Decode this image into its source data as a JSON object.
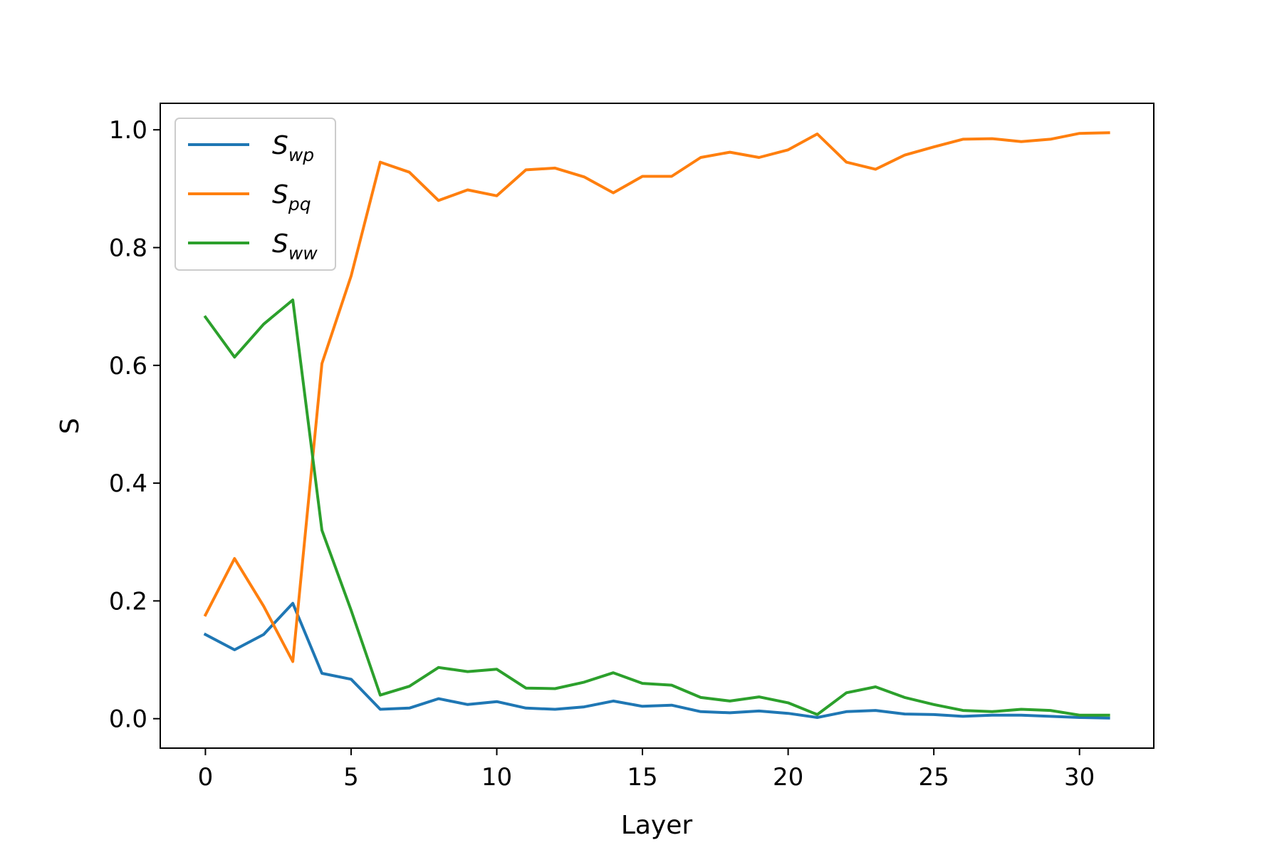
{
  "chart_data": {
    "type": "line",
    "title": "",
    "xlabel": "Layer",
    "ylabel": "S",
    "xlim": [
      -1.55,
      32.55
    ],
    "ylim": [
      -0.05,
      1.045
    ],
    "xticks": [
      0,
      5,
      10,
      15,
      20,
      25,
      30
    ],
    "xtick_labels": [
      "0",
      "5",
      "10",
      "15",
      "20",
      "25",
      "30"
    ],
    "yticks": [
      0.0,
      0.2,
      0.4,
      0.6,
      0.8,
      1.0
    ],
    "ytick_labels": [
      "0.0",
      "0.2",
      "0.4",
      "0.6",
      "0.8",
      "1.0"
    ],
    "grid": false,
    "legend_position": "upper-left",
    "x": [
      0,
      1,
      2,
      3,
      4,
      5,
      6,
      7,
      8,
      9,
      10,
      11,
      12,
      13,
      14,
      15,
      16,
      17,
      18,
      19,
      20,
      21,
      22,
      23,
      24,
      25,
      26,
      27,
      28,
      29,
      30,
      31
    ],
    "series": [
      {
        "name": "S_wp",
        "legend_main": "S",
        "legend_sub": "wp",
        "color": "#1f77b4",
        "values": [
          0.143,
          0.117,
          0.143,
          0.196,
          0.077,
          0.067,
          0.016,
          0.018,
          0.034,
          0.024,
          0.029,
          0.018,
          0.016,
          0.02,
          0.03,
          0.021,
          0.023,
          0.012,
          0.01,
          0.013,
          0.009,
          0.002,
          0.012,
          0.014,
          0.008,
          0.007,
          0.004,
          0.006,
          0.006,
          0.004,
          0.002,
          0.001
        ]
      },
      {
        "name": "S_pq",
        "legend_main": "S",
        "legend_sub": "pq",
        "color": "#ff7f0e",
        "values": [
          0.176,
          0.272,
          0.191,
          0.097,
          0.603,
          0.752,
          0.945,
          0.928,
          0.88,
          0.898,
          0.888,
          0.932,
          0.935,
          0.92,
          0.893,
          0.921,
          0.921,
          0.953,
          0.962,
          0.953,
          0.966,
          0.993,
          0.945,
          0.933,
          0.957,
          0.971,
          0.984,
          0.985,
          0.98,
          0.984,
          0.994,
          0.995
        ]
      },
      {
        "name": "S_ww",
        "legend_main": "S",
        "legend_sub": "ww",
        "color": "#2ca02c",
        "values": [
          0.682,
          0.614,
          0.67,
          0.711,
          0.32,
          0.184,
          0.04,
          0.055,
          0.087,
          0.08,
          0.084,
          0.052,
          0.051,
          0.062,
          0.078,
          0.06,
          0.057,
          0.036,
          0.03,
          0.037,
          0.027,
          0.007,
          0.044,
          0.054,
          0.036,
          0.024,
          0.014,
          0.012,
          0.016,
          0.014,
          0.006,
          0.006
        ]
      }
    ]
  }
}
